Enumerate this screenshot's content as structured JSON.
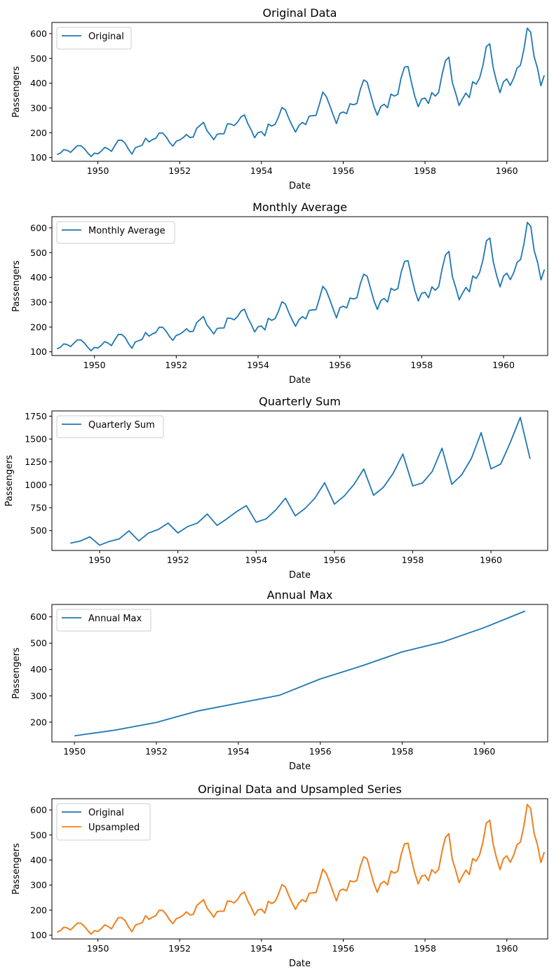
{
  "chart_data": [
    {
      "type": "line",
      "title": "Original Data",
      "xlabel": "Date",
      "ylabel": "Passengers",
      "xlim": [
        1948.875,
        1961.0
      ],
      "ylim": [
        85,
        645
      ],
      "xticks": [
        1950,
        1952,
        1954,
        1956,
        1958,
        1960
      ],
      "yticks": [
        100,
        200,
        300,
        400,
        500,
        600
      ],
      "legend": "upper-left",
      "grid": false,
      "series": [
        {
          "name": "Original",
          "color": "#1f77b4",
          "x_start": 1949.0,
          "x_step": 0.0833333,
          "values": [
            112,
            118,
            132,
            129,
            121,
            135,
            148,
            148,
            136,
            119,
            104,
            118,
            115,
            126,
            141,
            135,
            125,
            149,
            170,
            170,
            158,
            133,
            114,
            140,
            145,
            150,
            178,
            163,
            172,
            178,
            199,
            199,
            184,
            162,
            146,
            166,
            171,
            180,
            193,
            181,
            183,
            218,
            230,
            242,
            209,
            191,
            172,
            194,
            196,
            196,
            236,
            235,
            229,
            243,
            264,
            272,
            237,
            211,
            180,
            201,
            204,
            188,
            235,
            227,
            234,
            264,
            302,
            293,
            259,
            229,
            203,
            229,
            242,
            233,
            267,
            269,
            270,
            315,
            364,
            347,
            312,
            274,
            237,
            278,
            284,
            277,
            317,
            313,
            318,
            374,
            413,
            405,
            355,
            306,
            271,
            306,
            315,
            301,
            356,
            348,
            355,
            422,
            465,
            467,
            404,
            347,
            305,
            336,
            340,
            318,
            362,
            348,
            363,
            435,
            491,
            505,
            404,
            359,
            310,
            337,
            360,
            342,
            406,
            396,
            420,
            472,
            548,
            559,
            463,
            407,
            362,
            405,
            417,
            391,
            419,
            461,
            472,
            535,
            622,
            606,
            508,
            461,
            390,
            432
          ]
        }
      ]
    },
    {
      "type": "line",
      "title": "Monthly Average",
      "xlabel": "Date",
      "ylabel": "Passengers",
      "xlim": [
        1948.96,
        1961.08
      ],
      "ylim": [
        85,
        645
      ],
      "xticks": [
        1950,
        1952,
        1954,
        1956,
        1958,
        1960
      ],
      "yticks": [
        100,
        200,
        300,
        400,
        500,
        600
      ],
      "legend": "upper-left",
      "grid": false,
      "series": [
        {
          "name": "Monthly Average",
          "color": "#1f77b4",
          "x_start": 1949.083,
          "x_step": 0.0833333,
          "values": [
            112,
            118,
            132,
            129,
            121,
            135,
            148,
            148,
            136,
            119,
            104,
            118,
            115,
            126,
            141,
            135,
            125,
            149,
            170,
            170,
            158,
            133,
            114,
            140,
            145,
            150,
            178,
            163,
            172,
            178,
            199,
            199,
            184,
            162,
            146,
            166,
            171,
            180,
            193,
            181,
            183,
            218,
            230,
            242,
            209,
            191,
            172,
            194,
            196,
            196,
            236,
            235,
            229,
            243,
            264,
            272,
            237,
            211,
            180,
            201,
            204,
            188,
            235,
            227,
            234,
            264,
            302,
            293,
            259,
            229,
            203,
            229,
            242,
            233,
            267,
            269,
            270,
            315,
            364,
            347,
            312,
            274,
            237,
            278,
            284,
            277,
            317,
            313,
            318,
            374,
            413,
            405,
            355,
            306,
            271,
            306,
            315,
            301,
            356,
            348,
            355,
            422,
            465,
            467,
            404,
            347,
            305,
            336,
            340,
            318,
            362,
            348,
            363,
            435,
            491,
            505,
            404,
            359,
            310,
            337,
            360,
            342,
            406,
            396,
            420,
            472,
            548,
            559,
            463,
            407,
            362,
            405,
            417,
            391,
            419,
            461,
            472,
            535,
            622,
            606,
            508,
            461,
            390,
            432
          ]
        }
      ]
    },
    {
      "type": "line",
      "title": "Quarterly Sum",
      "xlabel": "Date",
      "ylabel": "Passengers",
      "xlim": [
        1948.78,
        1961.45
      ],
      "ylim": [
        283,
        1807
      ],
      "xticks": [
        1950,
        1952,
        1954,
        1956,
        1958,
        1960
      ],
      "yticks": [
        500,
        750,
        1000,
        1250,
        1500,
        1750
      ],
      "legend": "upper-left",
      "grid": false,
      "series": [
        {
          "name": "Quarterly Sum",
          "color": "#1f77b4",
          "x_start": 1949.25,
          "x_step": 0.25,
          "values": [
            362,
            385,
            432,
            341,
            382,
            409,
            498,
            387,
            473,
            513,
            582,
            474,
            544,
            582,
            681,
            557,
            628,
            707,
            773,
            592,
            627,
            725,
            854,
            661,
            742,
            854,
            1023,
            789,
            878,
            1004,
            1173,
            886,
            972,
            1125,
            1336,
            988,
            1020,
            1146,
            1400,
            1006,
            1108,
            1288,
            1570,
            1174,
            1227,
            1468,
            1736,
            1283
          ]
        }
      ]
    },
    {
      "type": "line",
      "title": "Annual Max",
      "xlabel": "Date",
      "ylabel": "Passengers",
      "xlim": [
        1949.45,
        1961.55
      ],
      "ylim": [
        125,
        647
      ],
      "xticks": [
        1950,
        1952,
        1954,
        1956,
        1958,
        1960
      ],
      "yticks": [
        200,
        300,
        400,
        500,
        600
      ],
      "legend": "upper-left",
      "grid": false,
      "series": [
        {
          "name": "Annual Max",
          "color": "#1f77b4",
          "x": [
            1950,
            1951,
            1952,
            1953,
            1954,
            1955,
            1956,
            1957,
            1958,
            1959,
            1960,
            1961
          ],
          "values": [
            148,
            170,
            199,
            242,
            272,
            302,
            364,
            413,
            467,
            505,
            559,
            622
          ]
        }
      ]
    },
    {
      "type": "line",
      "title": "Original Data and Upsampled Series",
      "xlabel": "Date",
      "ylabel": "Passengers",
      "xlim": [
        1948.875,
        1961.0
      ],
      "ylim": [
        85,
        645
      ],
      "xticks": [
        1950,
        1952,
        1954,
        1956,
        1958,
        1960
      ],
      "yticks": [
        100,
        200,
        300,
        400,
        500,
        600
      ],
      "legend": "upper-left",
      "grid": false,
      "series": [
        {
          "name": "Original",
          "color": "#1f77b4",
          "x_start": 1949.0,
          "x_step": 0.0833333,
          "values": [
            112,
            118,
            132,
            129,
            121,
            135,
            148,
            148,
            136,
            119,
            104,
            118,
            115,
            126,
            141,
            135,
            125,
            149,
            170,
            170,
            158,
            133,
            114,
            140,
            145,
            150,
            178,
            163,
            172,
            178,
            199,
            199,
            184,
            162,
            146,
            166,
            171,
            180,
            193,
            181,
            183,
            218,
            230,
            242,
            209,
            191,
            172,
            194,
            196,
            196,
            236,
            235,
            229,
            243,
            264,
            272,
            237,
            211,
            180,
            201,
            204,
            188,
            235,
            227,
            234,
            264,
            302,
            293,
            259,
            229,
            203,
            229,
            242,
            233,
            267,
            269,
            270,
            315,
            364,
            347,
            312,
            274,
            237,
            278,
            284,
            277,
            317,
            313,
            318,
            374,
            413,
            405,
            355,
            306,
            271,
            306,
            315,
            301,
            356,
            348,
            355,
            422,
            465,
            467,
            404,
            347,
            305,
            336,
            340,
            318,
            362,
            348,
            363,
            435,
            491,
            505,
            404,
            359,
            310,
            337,
            360,
            342,
            406,
            396,
            420,
            472,
            548,
            559,
            463,
            407,
            362,
            405,
            417,
            391,
            419,
            461,
            472,
            535,
            622,
            606,
            508,
            461,
            390,
            432
          ]
        },
        {
          "name": "Upsampled",
          "color": "#ff7f0e",
          "x_start": 1949.0,
          "x_step": 0.0833333,
          "values": [
            112,
            118,
            132,
            129,
            121,
            135,
            148,
            148,
            136,
            119,
            104,
            118,
            115,
            126,
            141,
            135,
            125,
            149,
            170,
            170,
            158,
            133,
            114,
            140,
            145,
            150,
            178,
            163,
            172,
            178,
            199,
            199,
            184,
            162,
            146,
            166,
            171,
            180,
            193,
            181,
            183,
            218,
            230,
            242,
            209,
            191,
            172,
            194,
            196,
            196,
            236,
            235,
            229,
            243,
            264,
            272,
            237,
            211,
            180,
            201,
            204,
            188,
            235,
            227,
            234,
            264,
            302,
            293,
            259,
            229,
            203,
            229,
            242,
            233,
            267,
            269,
            270,
            315,
            364,
            347,
            312,
            274,
            237,
            278,
            284,
            277,
            317,
            313,
            318,
            374,
            413,
            405,
            355,
            306,
            271,
            306,
            315,
            301,
            356,
            348,
            355,
            422,
            465,
            467,
            404,
            347,
            305,
            336,
            340,
            318,
            362,
            348,
            363,
            435,
            491,
            505,
            404,
            359,
            310,
            337,
            360,
            342,
            406,
            396,
            420,
            472,
            548,
            559,
            463,
            407,
            362,
            405,
            417,
            391,
            419,
            461,
            472,
            535,
            622,
            606,
            508,
            461,
            390,
            432
          ]
        }
      ]
    }
  ]
}
